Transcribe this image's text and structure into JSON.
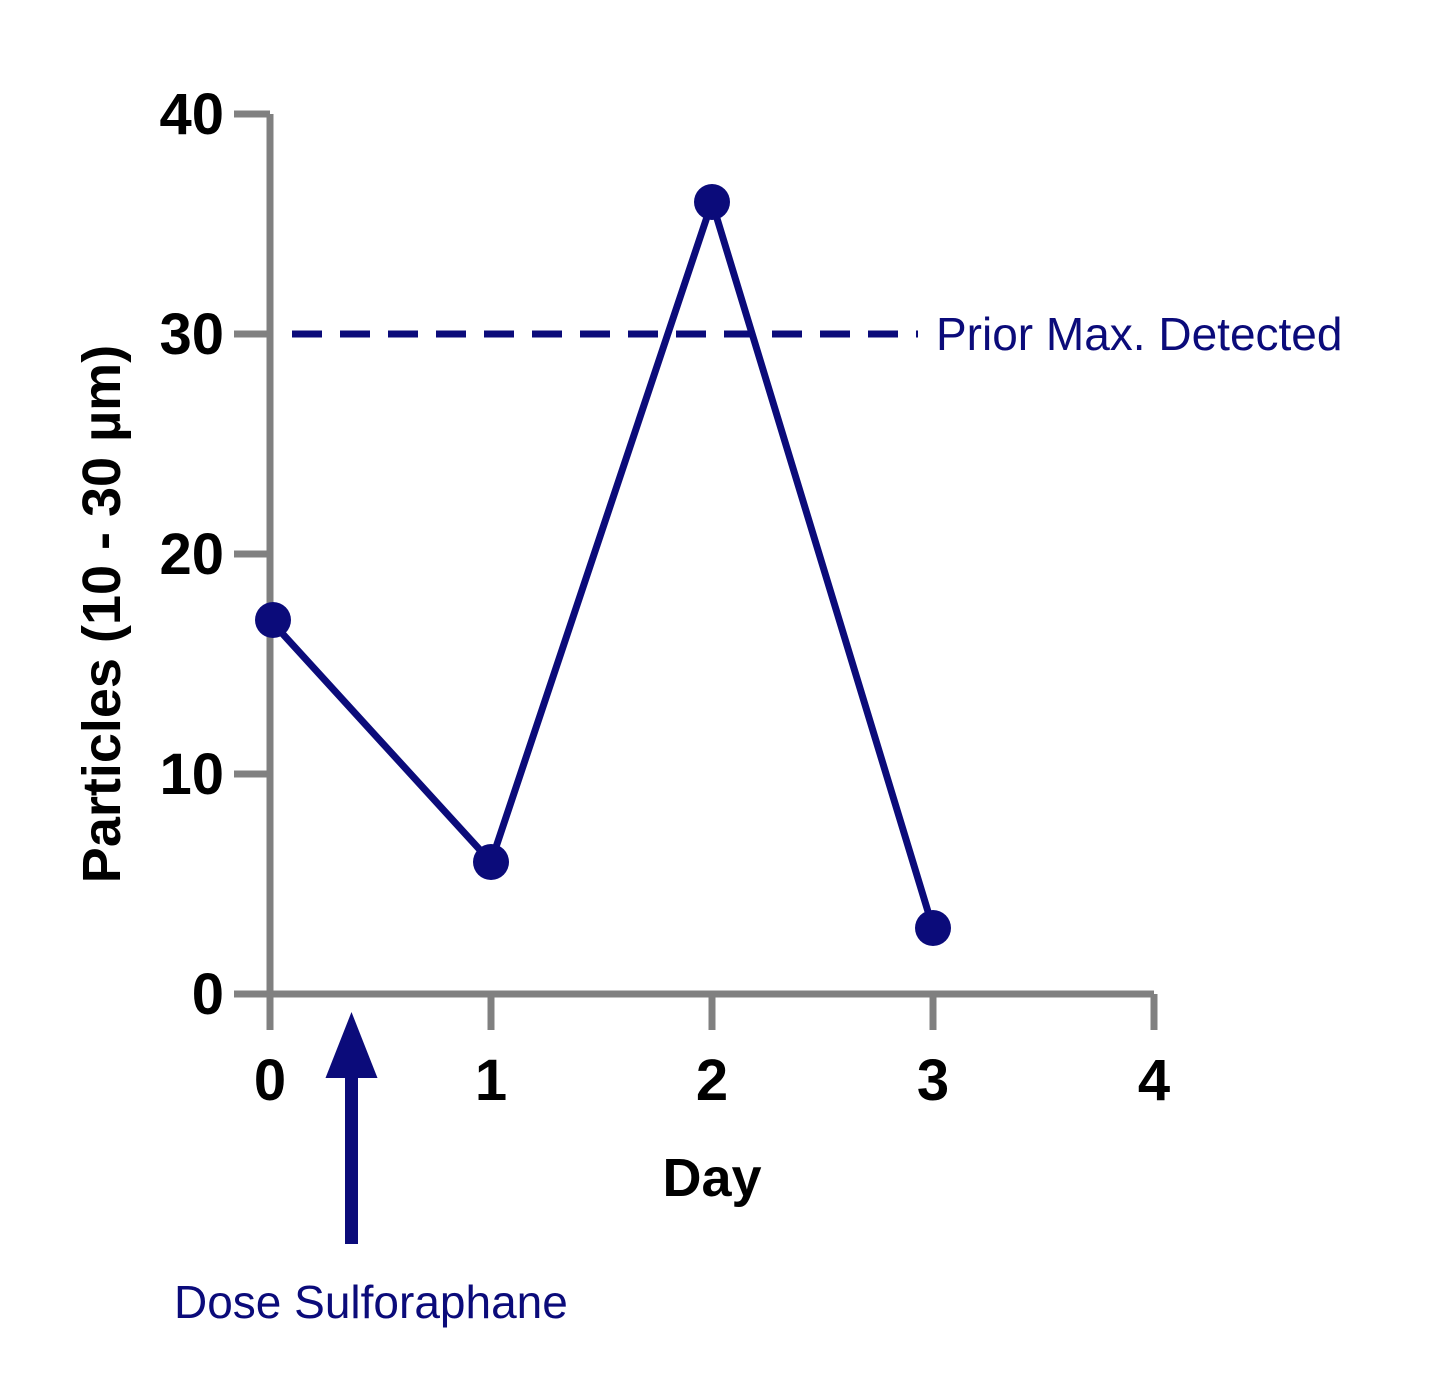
{
  "colors": {
    "series": "#0b0b7a",
    "axis": "#808080",
    "text": "#000000"
  },
  "chart_data": {
    "type": "line",
    "xlabel": "Day",
    "ylabel": "Particles (10 - 30 µm)",
    "xlim": [
      0,
      4
    ],
    "ylim": [
      0,
      40
    ],
    "xticks": [
      "0",
      "1",
      "2",
      "3",
      "4"
    ],
    "yticks": [
      "0",
      "10",
      "20",
      "30",
      "40"
    ],
    "grid": false,
    "series": [
      {
        "x": [
          0,
          1,
          2,
          3
        ],
        "values": [
          17,
          6,
          36,
          3
        ]
      }
    ],
    "reference_line": {
      "y": 30,
      "label": "Prior Max. Detected",
      "style": "dashed"
    },
    "annotation": {
      "x": 0.5,
      "label": "Dose Sulforaphane",
      "marker": "arrow-up"
    }
  }
}
